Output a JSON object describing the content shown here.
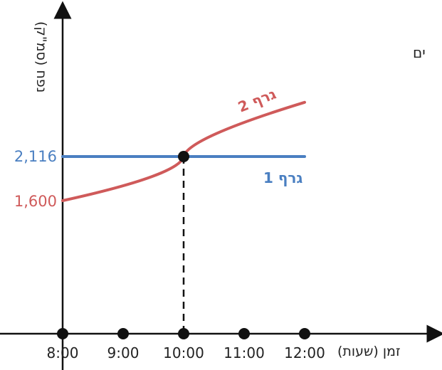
{
  "corner_text": "ים",
  "chart_data": {
    "type": "line",
    "xlabel": "זמן (שעות)",
    "ylabel": "נפח (סמ\"ק)",
    "x_ticks": [
      "8:00",
      "9:00",
      "10:00",
      "11:00",
      "12:00"
    ],
    "y_labels": [
      "2,116",
      "1,600"
    ],
    "y_values": [
      2116,
      1600
    ],
    "intersection": {
      "x": "10:00",
      "y": 2116
    },
    "series": [
      {
        "name": "גרף 1",
        "color": "#4a7fc1",
        "x": [
          "8:00",
          "12:00"
        ],
        "y": [
          2116,
          2116
        ]
      },
      {
        "name": "גרף 2",
        "color": "#cf5a5a",
        "x": [
          "8:00",
          "10:00",
          "12:00"
        ],
        "y": [
          1600,
          2116,
          2750
        ]
      }
    ],
    "grid": false
  }
}
